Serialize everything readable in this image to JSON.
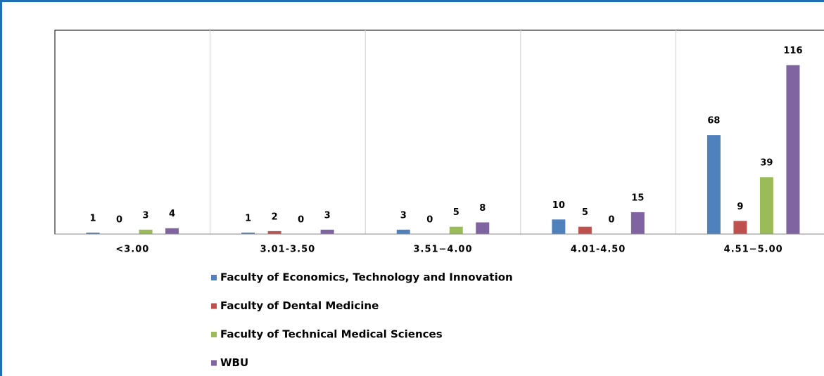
{
  "chart_data": {
    "type": "bar",
    "categories": [
      "<3.00",
      "3.01-3.50",
      "3.51−4.00",
      "4.01-4.50",
      "4.51−5.00"
    ],
    "series": [
      {
        "name": "Faculty of Economics, Technology and Innovation",
        "color": "#4f81bd",
        "values": [
          1,
          1,
          3,
          10,
          68
        ]
      },
      {
        "name": "Faculty of Dental Medicine",
        "color": "#c0504d",
        "values": [
          0,
          2,
          0,
          5,
          9
        ]
      },
      {
        "name": "Faculty of Technical Medical Sciences",
        "color": "#9bbb59",
        "values": [
          3,
          0,
          5,
          0,
          39
        ]
      },
      {
        "name": "WBU",
        "color": "#8064a2",
        "values": [
          4,
          3,
          8,
          15,
          116
        ]
      }
    ],
    "ylim": [
      0,
      140
    ],
    "legend": "bottom"
  }
}
